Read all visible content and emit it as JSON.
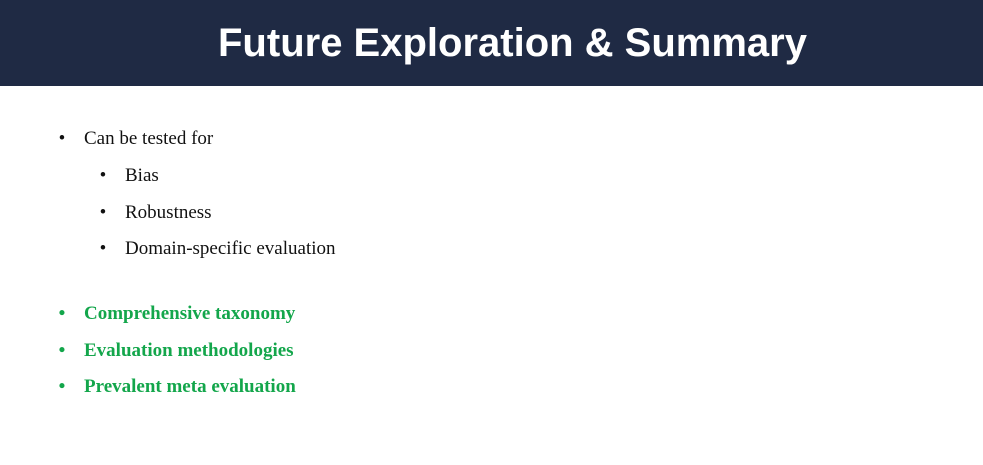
{
  "slide": {
    "title": "Future Exploration & Summary",
    "bullet_char": "•",
    "intro": "Can be tested for",
    "sub_items": [
      "Bias",
      "Robustness",
      "Domain-specific evaluation"
    ],
    "summary_items": [
      "Comprehensive taxonomy",
      "Evaluation methodologies",
      "Prevalent meta evaluation"
    ]
  },
  "colors": {
    "title_bar": "#1f2a44",
    "title_text": "#ffffff",
    "body_text": "#111111",
    "highlight": "#13a64b"
  }
}
